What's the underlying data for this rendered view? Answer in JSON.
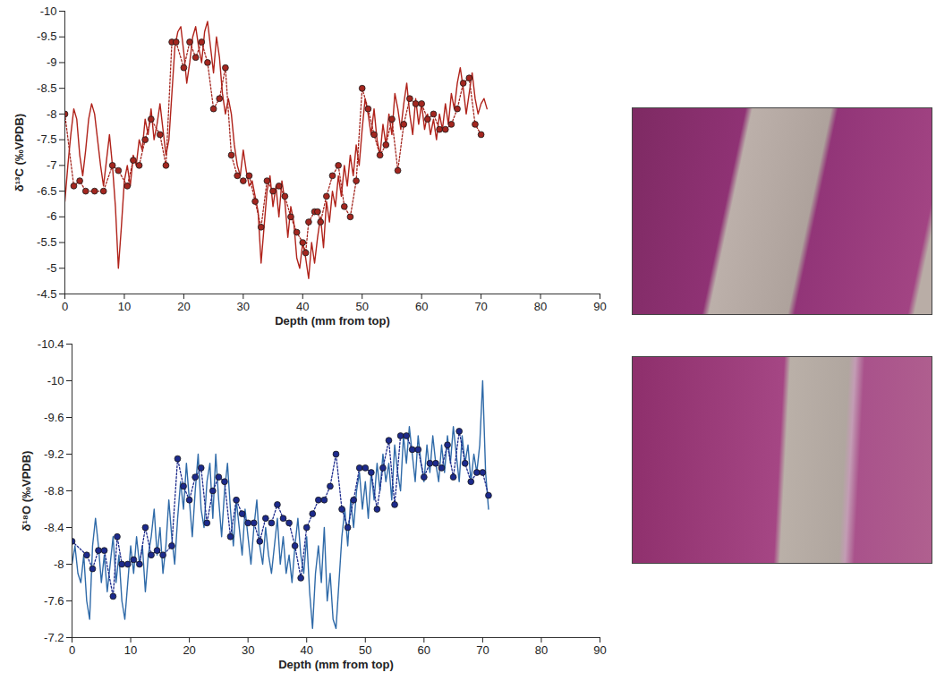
{
  "chart_data": [
    {
      "type": "line",
      "xlabel": "Depth (mm from top)",
      "ylabel": "δ¹³C (‰VPDB)",
      "xlim": [
        0,
        90
      ],
      "xticks": [
        0,
        10,
        20,
        30,
        40,
        50,
        60,
        70,
        80,
        90
      ],
      "ylim": [
        -4.5,
        -10
      ],
      "yticks": [
        -10,
        -9.5,
        -9,
        -8.5,
        -8,
        -7.5,
        -7,
        -6.5,
        -6,
        -5.5,
        -5,
        -4.5
      ],
      "grid": false,
      "series": [
        {
          "color": "#b0231b",
          "line_style": "solid",
          "marker": "none",
          "x": [
            0,
            0.5,
            1,
            1.5,
            2,
            2.5,
            3,
            3.5,
            4,
            4.5,
            5,
            5.5,
            6,
            6.5,
            7,
            7.5,
            8,
            8.5,
            9,
            9.5,
            10,
            10.5,
            11,
            11.5,
            12,
            12.5,
            13,
            13.5,
            14,
            14.5,
            15,
            15.5,
            16,
            16.5,
            17,
            17.5,
            18,
            18.5,
            19,
            19.5,
            20,
            20.5,
            21,
            21.5,
            22,
            22.5,
            23,
            23.5,
            24,
            24.5,
            25,
            25.5,
            26,
            26.5,
            27,
            27.5,
            28,
            28.5,
            29,
            29.5,
            30,
            30.5,
            31,
            31.5,
            32,
            32.5,
            33,
            33.5,
            34,
            34.5,
            35,
            35.5,
            36,
            36.5,
            37,
            37.5,
            38,
            38.5,
            39,
            39.5,
            40,
            40.5,
            41,
            41.5,
            42,
            42.5,
            43,
            43.5,
            44,
            44.5,
            45,
            45.5,
            46,
            46.5,
            47,
            47.5,
            48,
            48.5,
            49,
            49.5,
            50,
            50.5,
            51,
            51.5,
            52,
            52.5,
            53,
            53.5,
            54,
            54.5,
            55,
            55.5,
            56,
            56.5,
            57,
            57.5,
            58,
            58.5,
            59,
            59.5,
            60,
            60.5,
            61,
            61.5,
            62,
            62.5,
            63,
            63.5,
            64,
            64.5,
            65,
            65.5,
            66,
            66.5,
            67,
            67.5,
            68,
            68.5,
            69,
            69.5,
            70,
            70.5,
            71
          ],
          "values": [
            -6.3,
            -7.0,
            -7.6,
            -8.1,
            -7.9,
            -7.2,
            -6.8,
            -7.3,
            -7.9,
            -8.2,
            -8.0,
            -7.5,
            -7.0,
            -6.6,
            -7.1,
            -7.6,
            -7.0,
            -6.2,
            -5.0,
            -5.8,
            -6.7,
            -7.0,
            -6.6,
            -7.2,
            -7.0,
            -7.5,
            -7.3,
            -7.9,
            -7.6,
            -8.1,
            -7.5,
            -7.8,
            -8.2,
            -7.7,
            -7.2,
            -7.5,
            -8.4,
            -9.3,
            -9.6,
            -9.7,
            -9.2,
            -8.6,
            -9.0,
            -9.5,
            -9.7,
            -9.3,
            -9.0,
            -9.6,
            -9.8,
            -9.3,
            -8.8,
            -9.5,
            -9.1,
            -8.4,
            -8.0,
            -8.3,
            -8.0,
            -7.4,
            -7.0,
            -6.8,
            -7.3,
            -6.9,
            -6.6,
            -6.7,
            -6.4,
            -6.1,
            -5.1,
            -5.8,
            -6.5,
            -6.8,
            -6.2,
            -6.6,
            -6.0,
            -6.7,
            -6.3,
            -5.6,
            -6.2,
            -5.9,
            -5.2,
            -5.0,
            -5.5,
            -5.2,
            -4.8,
            -5.5,
            -5.1,
            -5.6,
            -6.0,
            -5.4,
            -6.3,
            -5.9,
            -6.5,
            -6.2,
            -6.8,
            -6.4,
            -7.0,
            -6.6,
            -7.2,
            -6.8,
            -7.4,
            -7.0,
            -7.7,
            -8.3,
            -8.0,
            -7.6,
            -8.1,
            -7.5,
            -7.2,
            -7.8,
            -7.4,
            -8.0,
            -7.6,
            -8.4,
            -8.1,
            -7.7,
            -8.2,
            -8.6,
            -8.0,
            -7.6,
            -8.3,
            -7.8,
            -8.2,
            -7.7,
            -8.0,
            -7.6,
            -7.9,
            -7.5,
            -8.0,
            -7.7,
            -8.2,
            -7.8,
            -8.4,
            -8.1,
            -8.6,
            -8.9,
            -8.5,
            -8.0,
            -8.4,
            -8.8,
            -8.3,
            -8.0,
            -8.2,
            -8.3,
            -8.1
          ]
        },
        {
          "color": "#a3261f",
          "line_style": "dotted",
          "marker": "circle",
          "x": [
            0,
            1.5,
            2.5,
            3.5,
            5,
            6.5,
            8,
            9,
            10.5,
            11.5,
            12.5,
            13.5,
            14.5,
            16,
            17,
            18,
            18.7,
            20,
            21,
            22,
            23,
            24,
            25,
            26,
            27,
            28,
            29,
            30,
            31,
            32,
            33,
            34,
            35,
            36,
            37,
            38,
            39,
            40,
            40.5,
            41,
            42,
            42.5,
            43,
            44,
            45,
            46,
            47,
            48,
            49,
            50,
            51,
            52,
            53,
            54,
            55,
            56,
            57,
            58,
            59,
            60,
            61,
            62,
            63,
            64,
            65,
            66,
            67,
            68,
            69,
            70
          ],
          "values": [
            -8.0,
            -6.6,
            -6.7,
            -6.5,
            -6.5,
            -6.5,
            -7.0,
            -6.9,
            -6.6,
            -7.1,
            -7.0,
            -7.5,
            -7.9,
            -7.6,
            -7.0,
            -9.4,
            -9.4,
            -8.9,
            -9.4,
            -9.1,
            -9.4,
            -9.0,
            -8.1,
            -8.3,
            -8.9,
            -7.2,
            -6.8,
            -6.7,
            -6.8,
            -6.3,
            -5.8,
            -6.7,
            -6.5,
            -6.6,
            -6.4,
            -6.0,
            -5.7,
            -5.5,
            -5.3,
            -5.9,
            -6.1,
            -6.1,
            -5.9,
            -6.4,
            -6.8,
            -7.0,
            -6.2,
            -6.0,
            -6.7,
            -8.5,
            -8.1,
            -7.6,
            -7.2,
            -7.4,
            -7.9,
            -6.9,
            -7.8,
            -8.3,
            -8.2,
            -8.2,
            -7.9,
            -8.0,
            -7.7,
            -7.7,
            -7.8,
            -8.1,
            -8.6,
            -8.7,
            -7.8,
            -7.6
          ]
        }
      ]
    },
    {
      "type": "line",
      "xlabel": "Depth (mm from top)",
      "ylabel": "δ¹⁸O (‰VPDB)",
      "xlim": [
        0,
        90
      ],
      "xticks": [
        0,
        10,
        20,
        30,
        40,
        50,
        60,
        70,
        80,
        90
      ],
      "ylim": [
        -7.2,
        -10.4
      ],
      "yticks": [
        -10.4,
        -10,
        -9.6,
        -9.2,
        -8.8,
        -8.4,
        -8,
        -7.6,
        -7.2
      ],
      "grid": false,
      "series": [
        {
          "color": "#2f6aa8",
          "line_style": "solid",
          "marker": "none",
          "x": [
            0,
            0.5,
            1,
            1.5,
            2,
            2.5,
            3,
            3.5,
            4,
            4.5,
            5,
            5.5,
            6,
            6.5,
            7,
            7.5,
            8,
            8.5,
            9,
            9.5,
            10,
            10.5,
            11,
            11.5,
            12,
            12.5,
            13,
            13.5,
            14,
            14.5,
            15,
            15.5,
            16,
            16.5,
            17,
            17.5,
            18,
            18.5,
            19,
            19.5,
            20,
            20.5,
            21,
            21.5,
            22,
            22.5,
            23,
            23.5,
            24,
            24.5,
            25,
            25.5,
            26,
            26.5,
            27,
            27.5,
            28,
            28.5,
            29,
            29.5,
            30,
            30.5,
            31,
            31.5,
            32,
            32.5,
            33,
            33.5,
            34,
            34.5,
            35,
            35.5,
            36,
            36.5,
            37,
            37.5,
            38,
            38.5,
            39,
            39.5,
            40,
            40.5,
            41,
            41.5,
            42,
            42.5,
            43,
            43.5,
            44,
            44.5,
            45,
            45.5,
            46,
            46.5,
            47,
            47.5,
            48,
            48.5,
            49,
            49.5,
            50,
            50.5,
            51,
            51.5,
            52,
            52.5,
            53,
            53.5,
            54,
            54.5,
            55,
            55.5,
            56,
            56.5,
            57,
            57.5,
            58,
            58.5,
            59,
            59.5,
            60,
            60.5,
            61,
            61.5,
            62,
            62.5,
            63,
            63.5,
            64,
            64.5,
            65,
            65.5,
            66,
            66.5,
            67,
            67.5,
            68,
            68.5,
            69,
            69.5,
            70,
            70.5,
            71
          ],
          "values": [
            -8.0,
            -8.2,
            -7.9,
            -7.8,
            -8.1,
            -7.6,
            -7.4,
            -8.2,
            -8.5,
            -8.2,
            -7.8,
            -8.1,
            -7.7,
            -8.0,
            -8.3,
            -7.8,
            -8.1,
            -7.6,
            -7.4,
            -7.8,
            -8.2,
            -7.9,
            -8.3,
            -8.0,
            -8.2,
            -7.7,
            -8.1,
            -8.3,
            -8.6,
            -8.1,
            -8.4,
            -7.9,
            -8.2,
            -8.7,
            -8.3,
            -8.0,
            -8.5,
            -8.9,
            -8.6,
            -9.1,
            -8.7,
            -8.3,
            -8.8,
            -9.2,
            -8.6,
            -8.4,
            -8.9,
            -9.1,
            -8.5,
            -9.2,
            -8.7,
            -8.3,
            -8.8,
            -9.1,
            -8.6,
            -8.2,
            -8.7,
            -8.4,
            -8.1,
            -8.6,
            -8.3,
            -8.0,
            -8.4,
            -8.7,
            -8.2,
            -8.0,
            -8.4,
            -8.1,
            -7.9,
            -8.2,
            -8.5,
            -8.0,
            -8.3,
            -7.9,
            -8.1,
            -7.8,
            -8.2,
            -8.5,
            -8.1,
            -7.9,
            -8.3,
            -7.7,
            -7.3,
            -7.9,
            -8.2,
            -7.8,
            -8.4,
            -7.6,
            -7.9,
            -7.4,
            -7.3,
            -7.8,
            -8.3,
            -8.6,
            -8.2,
            -8.7,
            -8.4,
            -8.8,
            -9.0,
            -8.6,
            -8.9,
            -8.5,
            -9.0,
            -8.7,
            -9.1,
            -8.8,
            -9.2,
            -8.9,
            -9.1,
            -8.7,
            -9.3,
            -9.0,
            -8.8,
            -9.4,
            -9.1,
            -9.5,
            -9.2,
            -8.9,
            -9.4,
            -9.1,
            -8.9,
            -9.3,
            -9.0,
            -9.4,
            -9.1,
            -8.9,
            -9.3,
            -9.0,
            -9.4,
            -9.1,
            -9.5,
            -9.2,
            -8.9,
            -9.4,
            -9.1,
            -9.3,
            -8.9,
            -9.2,
            -9.0,
            -9.3,
            -10.0,
            -9.0,
            -8.6
          ]
        },
        {
          "color": "#1c2a8c",
          "line_style": "dotted",
          "marker": "circle",
          "x": [
            0,
            2.5,
            3.5,
            4.5,
            5.5,
            7,
            7.7,
            8.5,
            9.5,
            10.5,
            11.5,
            12.5,
            13.5,
            14.5,
            15.5,
            17,
            18,
            19,
            20,
            21,
            22,
            23,
            24,
            25,
            26,
            27,
            28,
            29,
            30,
            31,
            32,
            33,
            34,
            35,
            36,
            37,
            38,
            39,
            40,
            41,
            42,
            43,
            44,
            45,
            46,
            47,
            48,
            49,
            50,
            51,
            52,
            53,
            54,
            55,
            56,
            57,
            58,
            59,
            60,
            61,
            62,
            63,
            64,
            65,
            66,
            67,
            68,
            69,
            70,
            71
          ],
          "values": [
            -8.25,
            -8.1,
            -7.95,
            -8.15,
            -8.15,
            -7.65,
            -8.3,
            -8.0,
            -8.0,
            -8.05,
            -8.0,
            -8.4,
            -8.1,
            -8.15,
            -8.1,
            -8.2,
            -9.15,
            -8.85,
            -8.7,
            -8.95,
            -9.05,
            -8.45,
            -8.8,
            -8.95,
            -8.9,
            -8.3,
            -8.7,
            -8.55,
            -8.45,
            -8.45,
            -8.25,
            -8.5,
            -8.45,
            -8.65,
            -8.5,
            -8.45,
            -8.2,
            -7.85,
            -8.4,
            -8.55,
            -8.7,
            -8.7,
            -8.85,
            -9.2,
            -8.6,
            -8.4,
            -8.7,
            -9.05,
            -9.05,
            -9.0,
            -8.6,
            -9.05,
            -9.35,
            -8.65,
            -9.4,
            -9.4,
            -9.25,
            -9.25,
            -8.95,
            -9.1,
            -9.1,
            -9.05,
            -9.3,
            -8.95,
            -9.45,
            -9.1,
            -8.9,
            -9.0,
            -9.0,
            -8.75
          ]
        }
      ]
    }
  ]
}
